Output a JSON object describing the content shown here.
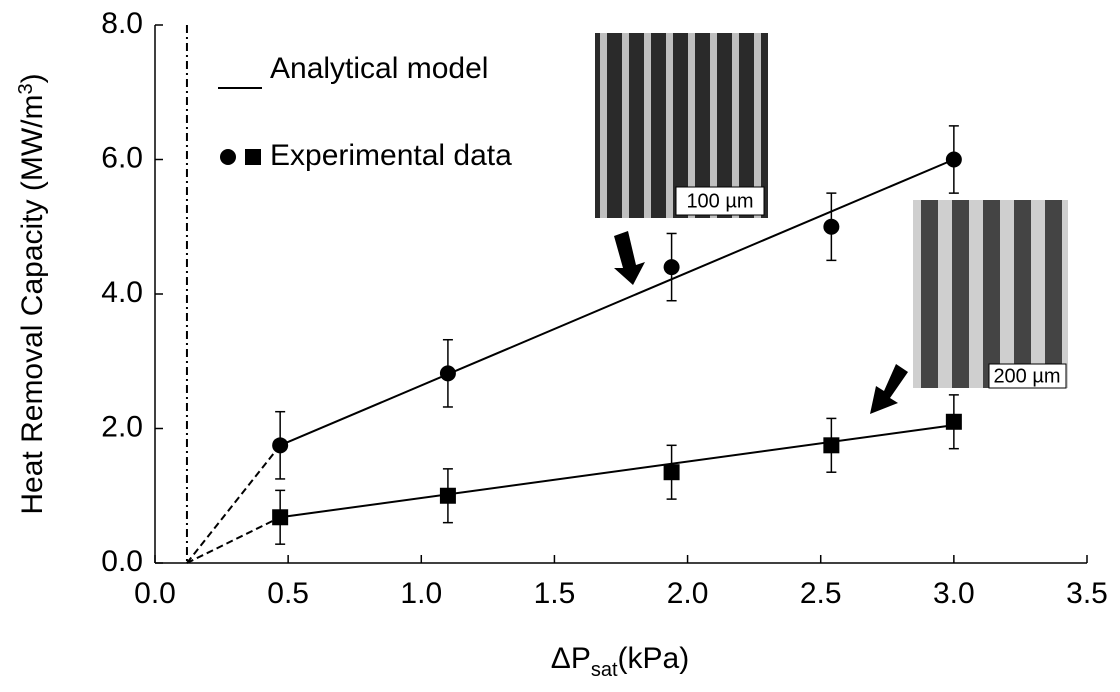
{
  "chart_data": {
    "type": "scatter",
    "x_label": {
      "main": "ΔP",
      "sub": "sat",
      "unit": "(kPa)"
    },
    "y_label": {
      "main": "Heat Removal Capacity (MW/m",
      "sup": "3",
      "end": ")"
    },
    "xlim": [
      0,
      3.5
    ],
    "xticks": [
      {
        "value": 0,
        "label": "0.0"
      },
      {
        "value": 0.5,
        "label": "0.5"
      },
      {
        "value": 1,
        "label": "1.0"
      },
      {
        "value": 1.5,
        "label": "1.5"
      },
      {
        "value": 2,
        "label": "2.0"
      },
      {
        "value": 2.5,
        "label": "2.5"
      },
      {
        "value": 3,
        "label": "3.0"
      },
      {
        "value": 3.5,
        "label": "3.5"
      }
    ],
    "ylim": [
      0,
      8
    ],
    "yticks": [
      {
        "value": 0,
        "label": "0.0"
      },
      {
        "value": 2,
        "label": "2.0"
      },
      {
        "value": 4,
        "label": "4.0"
      },
      {
        "value": 6,
        "label": "6.0"
      },
      {
        "value": 8,
        "label": "8.0"
      }
    ],
    "legend": {
      "line": "Analytical model",
      "points": "Experimental data"
    },
    "series": [
      {
        "marker": "circle",
        "color": "#000000",
        "x": [
          0.47,
          1.1,
          1.94,
          2.54,
          3.0
        ],
        "values": [
          1.75,
          2.82,
          4.4,
          5.0,
          6.0
        ],
        "errors": [
          0.5,
          0.5,
          0.5,
          0.5,
          0.5
        ]
      },
      {
        "marker": "square",
        "color": "#000000",
        "x": [
          0.47,
          1.1,
          1.94,
          2.54,
          3.0
        ],
        "values": [
          0.68,
          1.0,
          1.35,
          1.75,
          2.1
        ],
        "errors": [
          0.4,
          0.4,
          0.4,
          0.4,
          0.4
        ]
      }
    ],
    "model_lines": [
      {
        "x": [
          0.47,
          3.0
        ],
        "values": [
          1.75,
          6.0
        ]
      },
      {
        "x": [
          0.47,
          3.0
        ],
        "values": [
          0.68,
          2.05
        ]
      }
    ],
    "extrapolations": [
      {
        "x": [
          0.12,
          0.47
        ],
        "values": [
          0,
          1.75
        ]
      },
      {
        "x": [
          0.12,
          0.47
        ],
        "values": [
          0,
          0.68
        ]
      }
    ],
    "threshold_x": 0.12,
    "insets": [
      "100 µm",
      "200 µm"
    ]
  }
}
